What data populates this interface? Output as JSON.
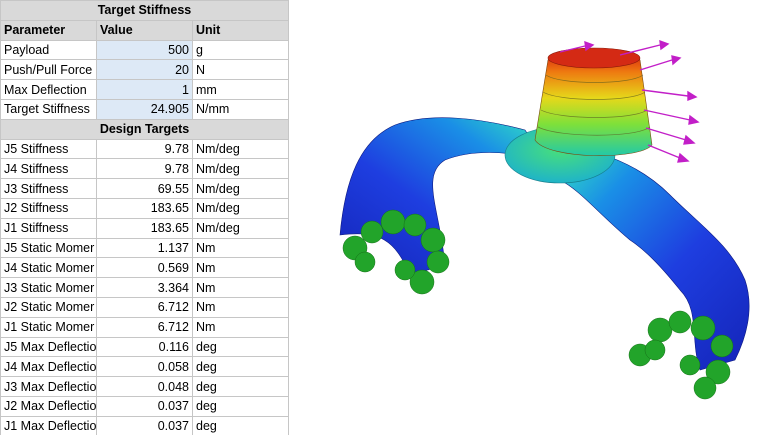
{
  "spreadsheet": {
    "title": "Target Stiffness",
    "headers": [
      "Parameter",
      "Value",
      "Unit"
    ],
    "inputs": [
      {
        "parameter": "Payload",
        "value": "500",
        "unit": "g"
      },
      {
        "parameter": "Push/Pull Force",
        "value": "20",
        "unit": "N"
      },
      {
        "parameter": "Max Deflection",
        "value": "1",
        "unit": "mm"
      },
      {
        "parameter": "Target Stiffness",
        "value": "24.905",
        "unit": "N/mm"
      }
    ],
    "section_title": "Design Targets",
    "targets": [
      {
        "parameter": "J5 Stiffness",
        "value": "9.78",
        "unit": "Nm/deg"
      },
      {
        "parameter": "J4 Stiffness",
        "value": "9.78",
        "unit": "Nm/deg"
      },
      {
        "parameter": "J3 Stiffness",
        "value": "69.55",
        "unit": "Nm/deg"
      },
      {
        "parameter": "J2 Stiffness",
        "value": "183.65",
        "unit": "Nm/deg"
      },
      {
        "parameter": "J1 Stiffness",
        "value": "183.65",
        "unit": "Nm/deg"
      },
      {
        "parameter": "J5 Static Momer",
        "value": "1.137",
        "unit": "Nm"
      },
      {
        "parameter": "J4 Static Momer",
        "value": "0.569",
        "unit": "Nm"
      },
      {
        "parameter": "J3 Static Momer",
        "value": "3.364",
        "unit": "Nm"
      },
      {
        "parameter": "J2 Static Momer",
        "value": "6.712",
        "unit": "Nm"
      },
      {
        "parameter": "J1 Static Momer",
        "value": "6.712",
        "unit": "Nm"
      },
      {
        "parameter": "J5 Max Deflectio",
        "value": "0.116",
        "unit": "deg"
      },
      {
        "parameter": "J4 Max Deflectio",
        "value": "0.058",
        "unit": "deg"
      },
      {
        "parameter": "J3 Max Deflectio",
        "value": "0.048",
        "unit": "deg"
      },
      {
        "parameter": "J2 Max Deflectio",
        "value": "0.037",
        "unit": "deg"
      },
      {
        "parameter": "J1 Max Deflectio",
        "value": "0.037",
        "unit": "deg"
      }
    ],
    "colors": {
      "header_fill": "#d9d9d9",
      "input_fill": "#dde9f6",
      "grid": "#c6c6c6"
    }
  },
  "fea_view": {
    "icons": [
      "fixed-support-icon",
      "load-arrow-icon"
    ],
    "colors": {
      "low": "#1c2fd0",
      "mid": "#22d87a",
      "high": "#d81a10",
      "support": "#22a42a",
      "load": "#c21fc8"
    }
  }
}
